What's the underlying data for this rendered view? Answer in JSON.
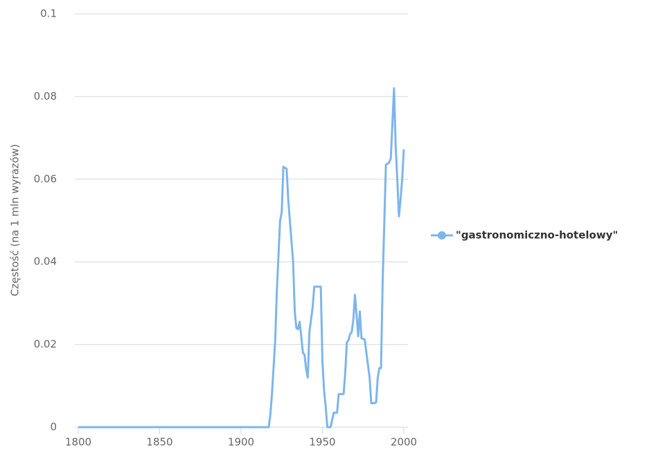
{
  "chart_data": {
    "type": "line",
    "y_label": "Częstość (na 1 mln wyrazów)",
    "xlim": [
      1800,
      2000
    ],
    "xticks": [
      1800,
      1850,
      1900,
      1950,
      2000
    ],
    "ylim": [
      0,
      0.1
    ],
    "yticks": [
      0,
      0.02,
      0.04,
      0.06,
      0.08,
      0.1
    ],
    "grid": true,
    "legend": "right",
    "x": [
      1800,
      1917,
      1918,
      1919,
      1921,
      1922,
      1924,
      1925,
      1926,
      1928,
      1929,
      1930,
      1932,
      1933,
      1934,
      1935,
      1936,
      1937,
      1938,
      1939,
      1940,
      1941,
      1942,
      1943,
      1944,
      1945,
      1947,
      1949,
      1950,
      1951,
      1952,
      1953,
      1955,
      1957,
      1959,
      1960,
      1963,
      1964,
      1965,
      1966,
      1967,
      1968,
      1969,
      1970,
      1971,
      1972,
      1973,
      1974,
      1976,
      1977,
      1979,
      1980,
      1982,
      1983,
      1984,
      1985,
      1986,
      1987,
      1989,
      1991,
      1992,
      1994,
      1995,
      1996,
      1997,
      1998,
      1999,
      2000
    ],
    "series": [
      {
        "name": "\"gastronomiczno-hotelowy\"",
        "color": "#7cb5ec",
        "values": [
          0,
          0,
          0.003,
          0.008,
          0.021,
          0.033,
          0.05,
          0.052,
          0.063,
          0.0625,
          0.055,
          0.05,
          0.04,
          0.028,
          0.024,
          0.0237,
          0.0255,
          0.022,
          0.018,
          0.0175,
          0.014,
          0.012,
          0.023,
          0.026,
          0.029,
          0.034,
          0.034,
          0.034,
          0.016,
          0.009,
          0.005,
          0,
          0,
          0.0035,
          0.0035,
          0.008,
          0.008,
          0.013,
          0.0205,
          0.021,
          0.0225,
          0.023,
          0.026,
          0.032,
          0.027,
          0.022,
          0.028,
          0.0215,
          0.0212,
          0.018,
          0.012,
          0.0058,
          0.0058,
          0.006,
          0.012,
          0.0143,
          0.0143,
          0.035,
          0.0635,
          0.064,
          0.065,
          0.082,
          0.068,
          0.06,
          0.051,
          0.055,
          0.06,
          0.0672
        ]
      }
    ]
  }
}
